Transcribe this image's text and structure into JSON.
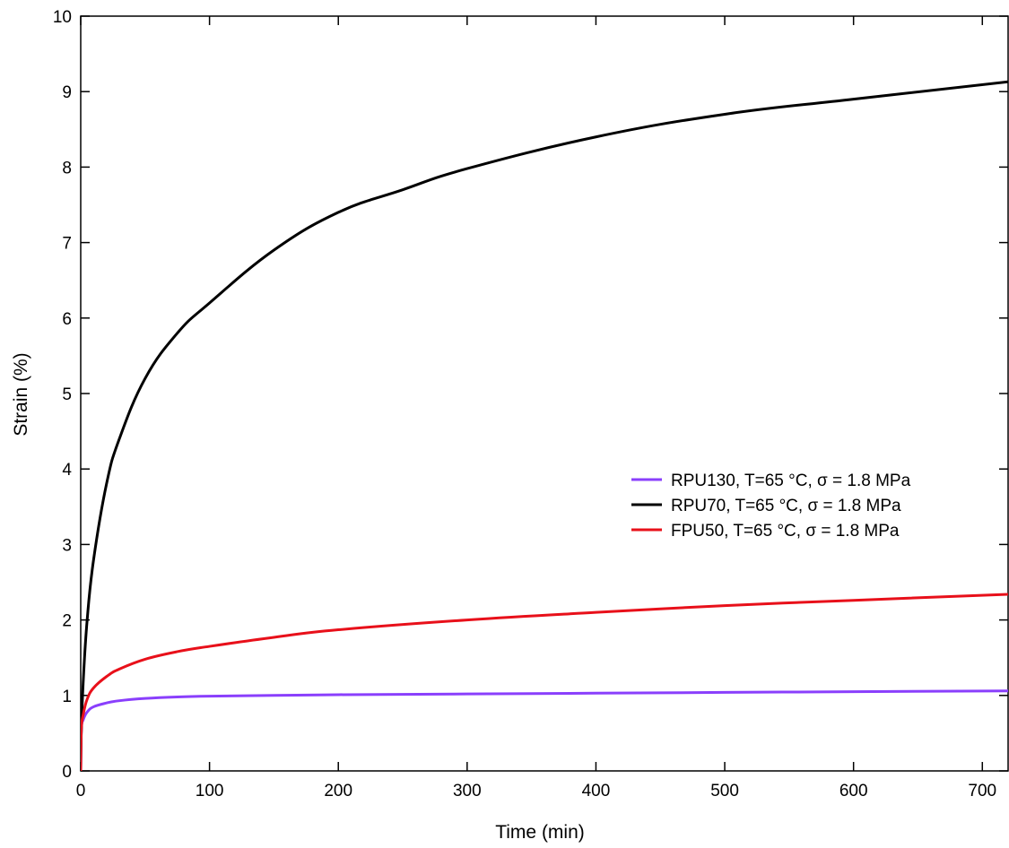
{
  "chart_data": {
    "type": "line",
    "title": "",
    "xlabel": "Time (min)",
    "ylabel": "Strain (%)",
    "xlim": [
      0,
      720
    ],
    "ylim": [
      0,
      10
    ],
    "xticks": [
      0,
      100,
      200,
      300,
      400,
      500,
      600,
      700
    ],
    "yticks": [
      0,
      1,
      2,
      3,
      4,
      5,
      6,
      7,
      8,
      9,
      10
    ],
    "grid": false,
    "legend_position": "right-center",
    "series": [
      {
        "name": "RPU130, T=65 °C, σ = 1.8 MPa",
        "color": "#8a3ffc",
        "x": [
          0,
          0.5,
          2,
          5,
          10,
          20,
          30,
          50,
          75,
          100,
          150,
          200,
          300,
          400,
          500,
          600,
          720
        ],
        "y": [
          0,
          0.55,
          0.68,
          0.78,
          0.85,
          0.9,
          0.93,
          0.96,
          0.98,
          0.99,
          1.0,
          1.01,
          1.02,
          1.03,
          1.04,
          1.05,
          1.06
        ]
      },
      {
        "name": "RPU70, T=65 °C, σ = 1.8 MPa",
        "color": "#000000",
        "x": [
          0,
          0.5,
          2,
          5,
          10,
          20,
          30,
          50,
          75,
          100,
          150,
          200,
          250,
          300,
          400,
          500,
          600,
          720
        ],
        "y": [
          0,
          0.55,
          1.2,
          2.0,
          2.8,
          3.8,
          4.4,
          5.2,
          5.8,
          6.2,
          6.9,
          7.4,
          7.7,
          7.98,
          8.4,
          8.7,
          8.9,
          9.13
        ]
      },
      {
        "name": "FPU50, T=65 °C, σ = 1.8 MPa",
        "color": "#e8101a",
        "x": [
          0,
          0.5,
          2,
          5,
          10,
          20,
          30,
          50,
          75,
          100,
          150,
          200,
          300,
          400,
          500,
          600,
          720
        ],
        "y": [
          0,
          0.55,
          0.75,
          0.95,
          1.1,
          1.25,
          1.35,
          1.48,
          1.58,
          1.65,
          1.77,
          1.87,
          2.0,
          2.1,
          2.19,
          2.26,
          2.34
        ]
      }
    ]
  }
}
